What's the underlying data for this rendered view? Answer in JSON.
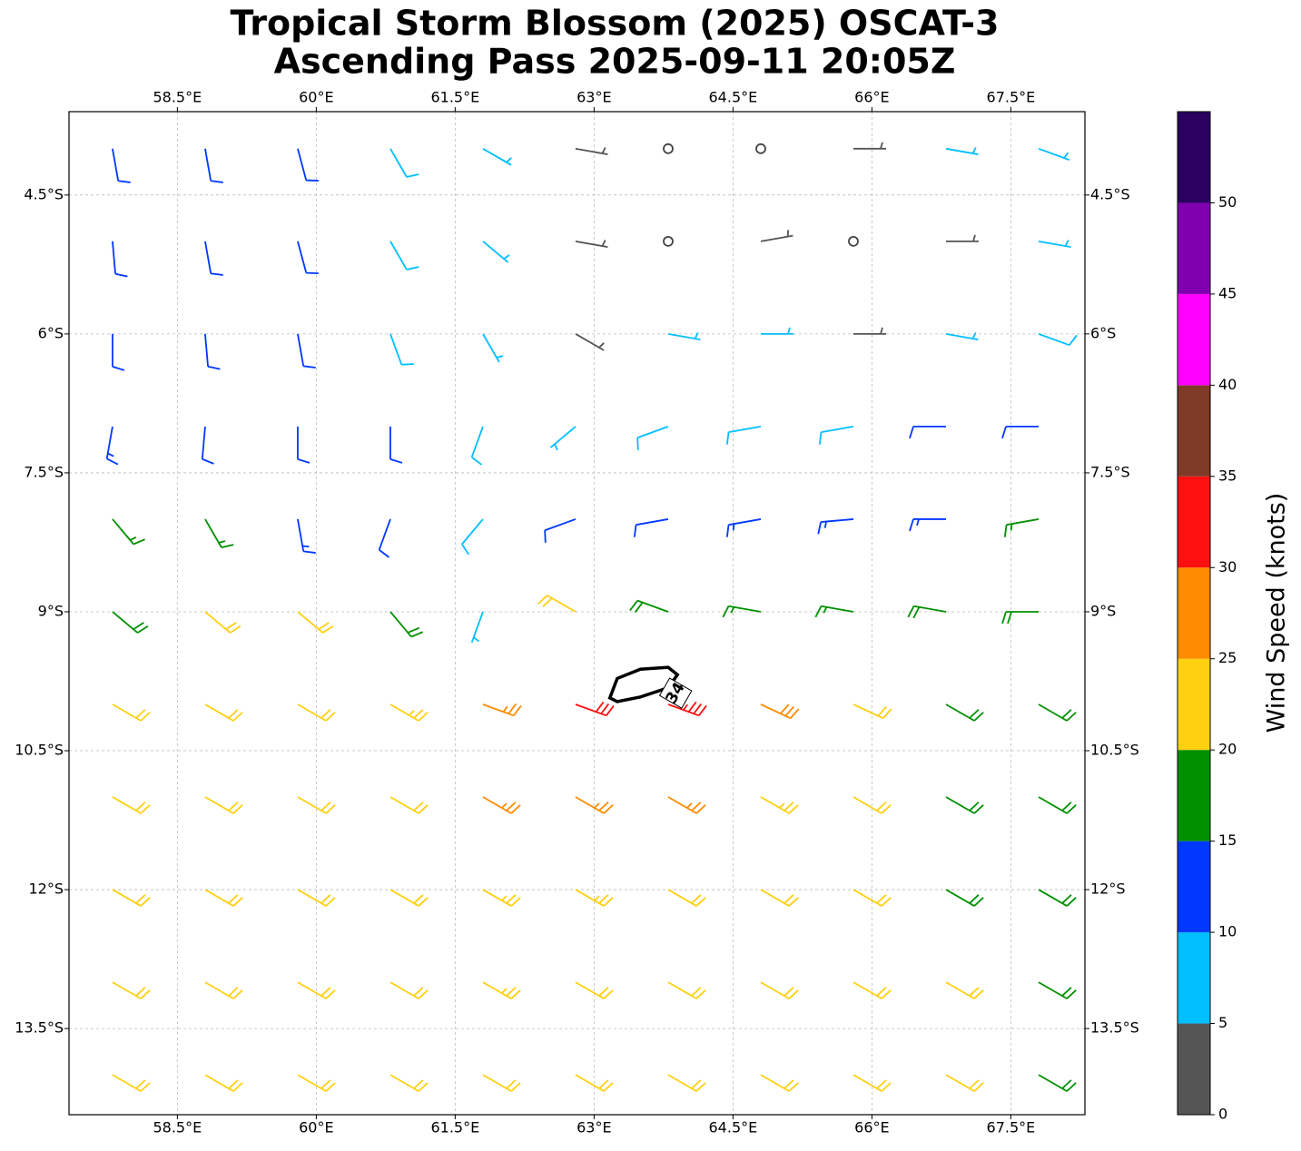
{
  "chart_data": {
    "type": "barbs",
    "title": [
      "Tropical Storm Blossom (2025) OSCAT-3",
      "Ascending Pass 2025-09-11 20:05Z"
    ],
    "xlim": [
      57.33,
      68.3
    ],
    "ylim": [
      -14.43,
      -3.6
    ],
    "xticks": [
      {
        "value": 58.5,
        "label": "58.5°E"
      },
      {
        "value": 60,
        "label": "60°E"
      },
      {
        "value": 61.5,
        "label": "61.5°E"
      },
      {
        "value": 63,
        "label": "63°E"
      },
      {
        "value": 64.5,
        "label": "64.5°E"
      },
      {
        "value": 66,
        "label": "66°E"
      },
      {
        "value": 67.5,
        "label": "67.5°E"
      }
    ],
    "yticks": [
      {
        "value": -4.5,
        "label": "4.5°S"
      },
      {
        "value": -6,
        "label": "6°S"
      },
      {
        "value": -7.5,
        "label": "7.5°S"
      },
      {
        "value": -9,
        "label": "9°S"
      },
      {
        "value": -10.5,
        "label": "10.5°S"
      },
      {
        "value": -12,
        "label": "12°S"
      },
      {
        "value": -13.5,
        "label": "13.5°S"
      }
    ],
    "grid": true,
    "wind": {
      "lon": [
        57.8,
        58.8,
        59.8,
        60.8,
        61.8,
        62.8,
        63.8,
        64.8,
        65.8,
        66.8,
        67.8
      ],
      "lat": [
        -4,
        -5,
        -6,
        -7,
        -8,
        -9,
        -10,
        -11,
        -12,
        -13,
        -14
      ],
      "speed": [
        [
          12,
          12,
          11,
          8,
          6,
          3,
          2,
          2,
          4,
          5,
          7
        ],
        [
          12,
          12,
          11,
          8,
          6,
          3,
          2,
          3,
          2,
          3,
          7
        ],
        [
          12,
          12,
          11,
          9,
          7,
          4,
          5,
          6,
          4,
          6,
          8
        ],
        [
          13,
          12,
          11,
          10,
          8,
          7,
          8,
          8,
          9,
          10,
          11
        ],
        [
          17,
          17,
          14,
          12,
          8,
          11,
          12,
          13,
          13,
          14,
          17
        ],
        [
          19,
          21,
          21,
          18,
          5,
          20,
          19,
          17,
          17,
          19,
          18
        ],
        [
          22,
          22,
          22,
          23,
          27,
          30,
          33,
          28,
          22,
          19,
          18
        ],
        [
          22,
          22,
          22,
          22,
          26,
          27,
          26,
          24,
          22,
          19,
          18
        ],
        [
          22,
          22,
          22,
          22,
          23,
          23,
          22,
          22,
          21,
          19,
          19
        ],
        [
          21,
          22,
          22,
          22,
          23,
          22,
          22,
          22,
          21,
          20,
          18
        ],
        [
          21,
          22,
          22,
          22,
          22,
          22,
          22,
          22,
          21,
          20,
          19
        ]
      ],
      "direction": [
        [
          170,
          170,
          165,
          150,
          120,
          100,
          90,
          80,
          90,
          100,
          110
        ],
        [
          175,
          170,
          165,
          150,
          130,
          100,
          90,
          80,
          80,
          90,
          100
        ],
        [
          180,
          175,
          170,
          160,
          150,
          120,
          100,
          90,
          90,
          100,
          110
        ],
        [
          190,
          185,
          180,
          180,
          200,
          230,
          250,
          260,
          260,
          270,
          270
        ],
        [
          140,
          150,
          170,
          200,
          220,
          250,
          260,
          260,
          265,
          270,
          260
        ],
        [
          130,
          130,
          130,
          140,
          200,
          300,
          290,
          280,
          280,
          280,
          270
        ],
        [
          120,
          120,
          120,
          120,
          110,
          110,
          110,
          115,
          115,
          120,
          120
        ],
        [
          120,
          120,
          120,
          120,
          120,
          120,
          120,
          120,
          120,
          120,
          120
        ],
        [
          120,
          120,
          120,
          120,
          120,
          120,
          120,
          120,
          120,
          120,
          120
        ],
        [
          120,
          120,
          120,
          120,
          120,
          120,
          120,
          120,
          120,
          120,
          120
        ],
        [
          120,
          120,
          120,
          120,
          120,
          120,
          120,
          120,
          120,
          120,
          120
        ]
      ]
    },
    "contour": {
      "level": 34,
      "lon": [
        63.17,
        63.25,
        63.5,
        63.8,
        63.9,
        63.8,
        63.5,
        63.25
      ],
      "lat": [
        -9.93,
        -9.72,
        -9.62,
        -9.6,
        -9.68,
        -9.82,
        -9.92,
        -9.97
      ]
    },
    "colorbar": {
      "label": "Wind Speed (knots)",
      "clim": [
        0,
        55
      ],
      "ticks": [
        0,
        5,
        10,
        15,
        20,
        25,
        30,
        35,
        40,
        45,
        50
      ],
      "colors": [
        "#555555",
        "#00bfff",
        "#0038ff",
        "#009000",
        "#ffd010",
        "#ff8c00",
        "#ff1010",
        "#7f3a28",
        "#ff00ff",
        "#8000b0",
        "#2a0060"
      ]
    }
  }
}
